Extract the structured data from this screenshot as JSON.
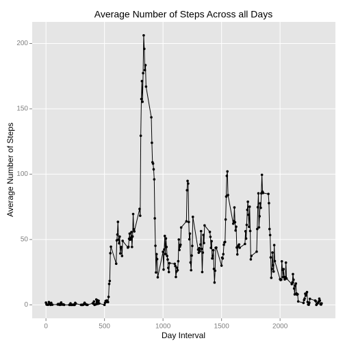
{
  "chart_data": {
    "type": "line",
    "title": "Average Number of Steps Across all Days",
    "x_label": "Day Interval",
    "y_label": "Average Number of Steps",
    "color": "#000000",
    "markers": true,
    "x": [
      0,
      5,
      10,
      15,
      20,
      25,
      30,
      35,
      40,
      45,
      50,
      55,
      100,
      105,
      110,
      115,
      120,
      125,
      130,
      135,
      140,
      145,
      150,
      155,
      200,
      205,
      210,
      215,
      220,
      225,
      230,
      235,
      240,
      245,
      250,
      255,
      300,
      305,
      310,
      315,
      320,
      325,
      330,
      335,
      340,
      345,
      350,
      355,
      400,
      405,
      410,
      415,
      420,
      425,
      430,
      435,
      440,
      445,
      450,
      455,
      500,
      505,
      510,
      515,
      520,
      525,
      530,
      535,
      540,
      545,
      550,
      555,
      600,
      605,
      610,
      615,
      620,
      625,
      630,
      635,
      640,
      645,
      650,
      655,
      700,
      705,
      710,
      715,
      720,
      725,
      730,
      735,
      740,
      745,
      750,
      755,
      800,
      805,
      810,
      815,
      820,
      825,
      830,
      835,
      840,
      845,
      850,
      855,
      900,
      905,
      910,
      915,
      920,
      925,
      930,
      935,
      940,
      945,
      950,
      955,
      1000,
      1005,
      1010,
      1015,
      1020,
      1025,
      1030,
      1035,
      1040,
      1045,
      1050,
      1055,
      1100,
      1105,
      1110,
      1115,
      1120,
      1125,
      1130,
      1135,
      1140,
      1145,
      1150,
      1155,
      1200,
      1205,
      1210,
      1215,
      1220,
      1225,
      1230,
      1235,
      1240,
      1245,
      1250,
      1255,
      1300,
      1305,
      1310,
      1315,
      1320,
      1325,
      1330,
      1335,
      1340,
      1345,
      1350,
      1355,
      1400,
      1405,
      1410,
      1415,
      1420,
      1425,
      1430,
      1435,
      1440,
      1445,
      1450,
      1455,
      1500,
      1505,
      1510,
      1515,
      1520,
      1525,
      1530,
      1535,
      1540,
      1545,
      1550,
      1555,
      1600,
      1605,
      1610,
      1615,
      1620,
      1625,
      1630,
      1635,
      1640,
      1645,
      1650,
      1655,
      1700,
      1705,
      1710,
      1715,
      1720,
      1725,
      1730,
      1735,
      1740,
      1745,
      1750,
      1755,
      1800,
      1805,
      1810,
      1815,
      1820,
      1825,
      1830,
      1835,
      1840,
      1845,
      1850,
      1855,
      1900,
      1905,
      1910,
      1915,
      1920,
      1925,
      1930,
      1935,
      1940,
      1945,
      1950,
      1955,
      2000,
      2005,
      2010,
      2015,
      2020,
      2025,
      2030,
      2035,
      2040,
      2045,
      2050,
      2055,
      2100,
      2105,
      2110,
      2115,
      2120,
      2125,
      2130,
      2135,
      2140,
      2145,
      2150,
      2155,
      2200,
      2205,
      2210,
      2215,
      2220,
      2225,
      2230,
      2235,
      2240,
      2245,
      2250,
      2255,
      2300,
      2305,
      2310,
      2315,
      2320,
      2325,
      2330,
      2335,
      2340,
      2345,
      2350,
      2355
    ],
    "values": [
      1.7,
      0.3,
      0.1,
      0.2,
      0.1,
      2.1,
      0.5,
      0.9,
      0,
      1.5,
      0.3,
      0.1,
      0.3,
      0.7,
      0.2,
      0.3,
      0,
      1.1,
      1.8,
      0.2,
      0.2,
      0.4,
      0.3,
      0,
      0,
      0,
      1.1,
      0,
      0,
      0.1,
      0,
      0.2,
      0,
      0,
      1.5,
      0.9,
      0,
      0,
      0,
      0,
      0.2,
      0.6,
      1.6,
      0.6,
      0.5,
      0.1,
      0,
      0,
      1.2,
      0.9,
      2.6,
      0,
      0.3,
      0.4,
      4.1,
      0.7,
      3.5,
      0.8,
      3.1,
      1.1,
      0,
      1.6,
      3,
      2.2,
      3.3,
      3,
      2.1,
      6.1,
      16,
      18.3,
      39.5,
      44.5,
      31.5,
      49.3,
      53.8,
      63.5,
      50,
      47.1,
      52.2,
      39.3,
      44,
      44.2,
      37.4,
      49,
      43.8,
      44.4,
      50.5,
      54.5,
      49.9,
      51,
      55.7,
      44.3,
      52.3,
      69.5,
      57.8,
      56.2,
      73.4,
      68.2,
      129.4,
      157.5,
      171.2,
      155.4,
      177.3,
      206.2,
      195.9,
      179.6,
      183.4,
      167,
      143.5,
      124,
      109.1,
      108.1,
      103.7,
      96,
      66.2,
      45.2,
      24.8,
      38.8,
      35,
      21.1,
      40.6,
      27,
      42.4,
      52.7,
      38.9,
      50.8,
      44.3,
      37.4,
      34.7,
      28.3,
      25.1,
      31.9,
      31.4,
      29.7,
      21.3,
      25.5,
      28.4,
      26.5,
      33.4,
      50,
      42,
      44.6,
      46,
      59.2,
      63.9,
      87.7,
      94.8,
      92.8,
      63.4,
      50.2,
      54.5,
      32.4,
      26.5,
      37.7,
      45.1,
      67.3,
      42.3,
      39.9,
      43.3,
      41,
      46.2,
      56.4,
      42.8,
      25.1,
      40,
      53.5,
      47.3,
      60.8,
      55.8,
      52,
      43.6,
      48.7,
      35.5,
      37.5,
      41.8,
      27.5,
      17.1,
      26.1,
      43.6,
      43.8,
      30,
      36.1,
      35.5,
      38.8,
      46,
      47.8,
      48.1,
      65.3,
      82.9,
      98.7,
      102.1,
      84,
      62.1,
      64.1,
      74.5,
      63.2,
      56.9,
      59.8,
      43.9,
      38.6,
      44.7,
      45.5,
      46.2,
      43.7,
      46.6,
      56.3,
      50.7,
      61.2,
      72.7,
      78.9,
      68.9,
      59.7,
      75.1,
      56.5,
      34.8,
      37.5,
      40.7,
      58,
      74.7,
      85.3,
      59.3,
      67.8,
      77.7,
      74.2,
      85.3,
      99.5,
      86.6,
      85.6,
      84.9,
      77.8,
      58,
      53.4,
      36.3,
      20.7,
      27.4,
      40,
      30.2,
      25.5,
      45.7,
      33.5,
      19.6,
      19,
      19.3,
      33.3,
      26.8,
      21.2,
      27.3,
      21.3,
      19.5,
      21.3,
      32.3,
      20.2,
      15.9,
      17.2,
      23.5,
      19.2,
      12.5,
      8,
      14.7,
      16.3,
      8.7,
      7.8,
      8.1,
      2.6,
      1.5,
      3.7,
      4.8,
      8.5,
      7.1,
      8.7,
      9.8,
      2.2,
      0.3,
      0.1,
      1.6,
      4.6,
      3.3,
      2.8,
      0,
      0.8,
      1,
      1.6,
      2.6,
      4.7,
      3.3,
      0.6,
      0.2,
      1.1
    ],
    "xlim": [
      -117.75,
      2472.75
    ],
    "ylim": [
      -10.3,
      216.5
    ],
    "xticks": [
      0,
      500,
      1000,
      1500,
      2000
    ],
    "yticks": [
      0,
      50,
      100,
      150,
      200
    ],
    "grid": true
  }
}
